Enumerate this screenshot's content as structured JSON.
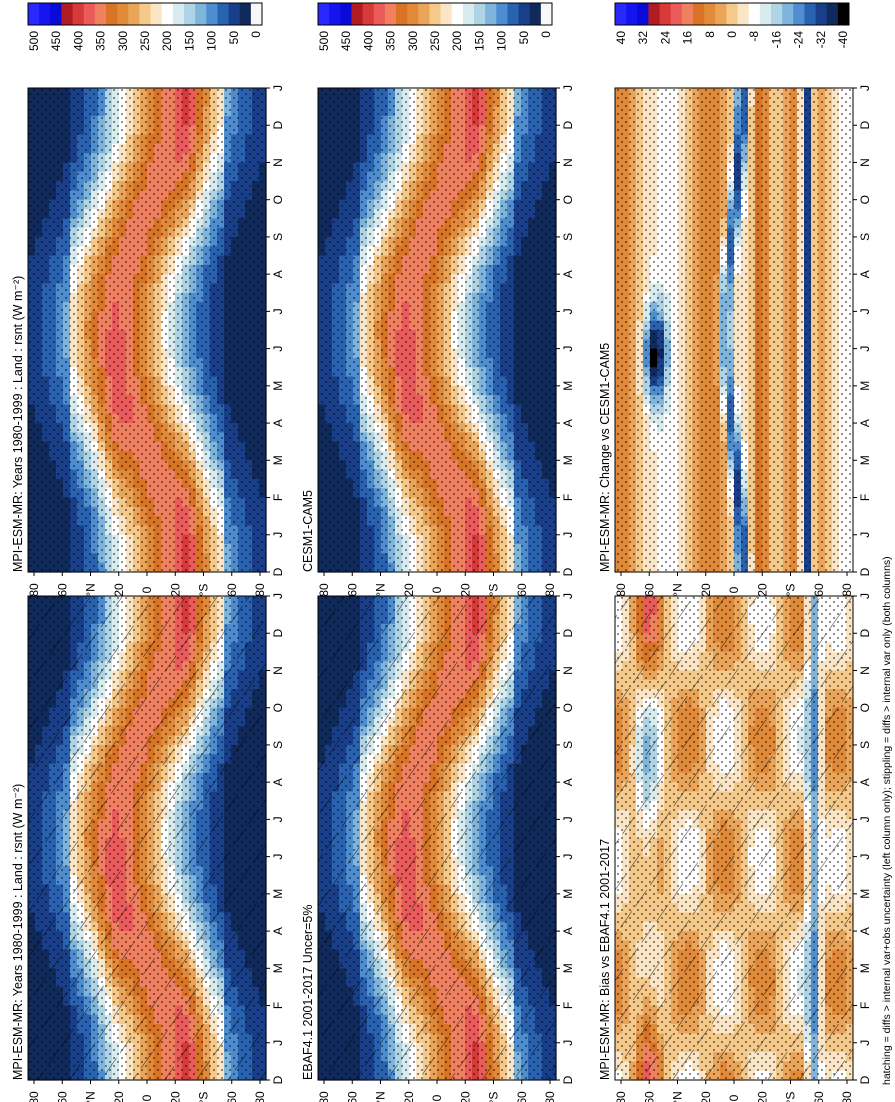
{
  "figure_note": "hatching = diffs > internal var+obs uncertainty (left column only); stippling = diffs > internal var only (both columns)",
  "palettes": {
    "abs": [
      "#f8f8f8",
      "#102a5c",
      "#1a3f8a",
      "#2a62b2",
      "#4e8ed0",
      "#7fb5dc",
      "#aed4e6",
      "#d8ecef",
      "#ffffff",
      "#fae6c6",
      "#f5c98a",
      "#eba55a",
      "#e08a3a",
      "#d97426",
      "#f08060",
      "#ec5b5b",
      "#d83a3a",
      "#b01c24",
      "#0a0ad8",
      "#1414f0",
      "#2828ff"
    ],
    "diff": [
      "#000000",
      "#102a5c",
      "#1a3f8a",
      "#2a62b2",
      "#4e8ed0",
      "#7fb5dc",
      "#aed4e6",
      "#d8ecef",
      "#ffffff",
      "#fae6c6",
      "#f5c98a",
      "#eba55a",
      "#e08a3a",
      "#d97426",
      "#f08060",
      "#ec5b5b",
      "#d83a3a",
      "#b01c24",
      "#0a0ad8",
      "#1414f0",
      "#2828ff"
    ]
  },
  "chart_data": [
    {
      "type": "heatmap",
      "panel": "left-top",
      "title": "MPI-ESM-MR: Years 1980-1999 : Land : rsnt (W m⁻²)",
      "x_axis": "month (D,J,F,...,D,J)",
      "y_axis": "latitude",
      "lat_ticks": [
        "80",
        "60",
        "°N",
        "20",
        "0",
        "20",
        "°S",
        "60",
        "80"
      ],
      "month_ticks": [
        "D",
        "J",
        "F",
        "M",
        "A",
        "M",
        "J",
        "J",
        "A",
        "S",
        "O",
        "N",
        "D",
        "J"
      ],
      "colorbar_ticks": [
        "500",
        "450",
        "400",
        "350",
        "300",
        "250",
        "200",
        "150",
        "100",
        "50",
        "0"
      ],
      "range": [
        0,
        500
      ],
      "palette": "abs",
      "field": "abs",
      "hatch": true,
      "stipple": true
    },
    {
      "type": "heatmap",
      "panel": "right-top",
      "title": "MPI-ESM-MR: Years 1980-1999 : Land : rsnt (W m⁻²)",
      "x_axis": "month",
      "y_axis": "latitude",
      "lat_ticks": [
        "80",
        "60",
        "°N",
        "20",
        "0",
        "20",
        "°S",
        "60",
        "80"
      ],
      "month_ticks": [
        "D",
        "J",
        "F",
        "M",
        "A",
        "M",
        "J",
        "J",
        "A",
        "S",
        "O",
        "N",
        "D",
        "J"
      ],
      "colorbar_ticks": [
        "500",
        "450",
        "400",
        "350",
        "300",
        "250",
        "200",
        "150",
        "100",
        "50",
        "0"
      ],
      "range": [
        0,
        500
      ],
      "palette": "abs",
      "field": "abs",
      "hatch": false,
      "stipple": true
    },
    {
      "type": "heatmap",
      "panel": "left-middle",
      "title": "EBAF4.1 2001-2017 Uncer=5%",
      "x_axis": "month",
      "y_axis": "latitude",
      "lat_ticks": [
        "80",
        "60",
        "°N",
        "20",
        "0",
        "20",
        "°S",
        "60",
        "80"
      ],
      "month_ticks": [
        "D",
        "J",
        "F",
        "M",
        "A",
        "M",
        "J",
        "J",
        "A",
        "S",
        "O",
        "N",
        "D",
        "J"
      ],
      "colorbar_ticks": [
        "500",
        "450",
        "400",
        "350",
        "300",
        "250",
        "200",
        "150",
        "100",
        "50",
        "0"
      ],
      "range": [
        0,
        500
      ],
      "palette": "abs",
      "field": "abs",
      "hatch": true,
      "stipple": true
    },
    {
      "type": "heatmap",
      "panel": "right-middle",
      "title": "CESM1-CAM5",
      "x_axis": "month",
      "y_axis": "latitude",
      "lat_ticks": [
        "80",
        "60",
        "°N",
        "20",
        "0",
        "20",
        "°S",
        "60",
        "80"
      ],
      "month_ticks": [
        "D",
        "J",
        "F",
        "M",
        "A",
        "M",
        "J",
        "J",
        "A",
        "S",
        "O",
        "N",
        "D",
        "J"
      ],
      "colorbar_ticks": [
        "500",
        "450",
        "400",
        "350",
        "300",
        "250",
        "200",
        "150",
        "100",
        "50",
        "0"
      ],
      "range": [
        0,
        500
      ],
      "palette": "abs",
      "field": "abs",
      "hatch": false,
      "stipple": true
    },
    {
      "type": "heatmap",
      "panel": "left-bottom",
      "title": "MPI-ESM-MR: Bias vs EBAF4.1 2001-2017",
      "x_axis": "month",
      "y_axis": "latitude",
      "lat_ticks": [
        "80",
        "60",
        "°N",
        "20",
        "0",
        "20",
        "°S",
        "60",
        "80"
      ],
      "month_ticks": [
        "D",
        "J",
        "F",
        "M",
        "A",
        "M",
        "J",
        "J",
        "A",
        "S",
        "O",
        "N",
        "D",
        "J"
      ],
      "colorbar_ticks": [
        "40",
        "32",
        "24",
        "16",
        "8",
        "0",
        "-8",
        "-16",
        "-24",
        "-32",
        "-40"
      ],
      "range": [
        -40,
        40
      ],
      "palette": "diff",
      "field": "bias",
      "hatch": true,
      "stipple": true
    },
    {
      "type": "heatmap",
      "panel": "right-bottom",
      "title": "MPI-ESM-MR: Change vs CESM1-CAM5",
      "x_axis": "month",
      "y_axis": "latitude",
      "lat_ticks": [
        "80",
        "60",
        "°N",
        "20",
        "0",
        "20",
        "°S",
        "60",
        "80"
      ],
      "month_ticks": [
        "D",
        "J",
        "F",
        "M",
        "A",
        "M",
        "J",
        "J",
        "A",
        "S",
        "O",
        "N",
        "D",
        "J"
      ],
      "colorbar_ticks": [
        "40",
        "32",
        "24",
        "16",
        "8",
        "0",
        "-8",
        "-16",
        "-24",
        "-32",
        "-40"
      ],
      "range": [
        -40,
        40
      ],
      "palette": "diff",
      "field": "change",
      "hatch": false,
      "stipple": true
    }
  ]
}
